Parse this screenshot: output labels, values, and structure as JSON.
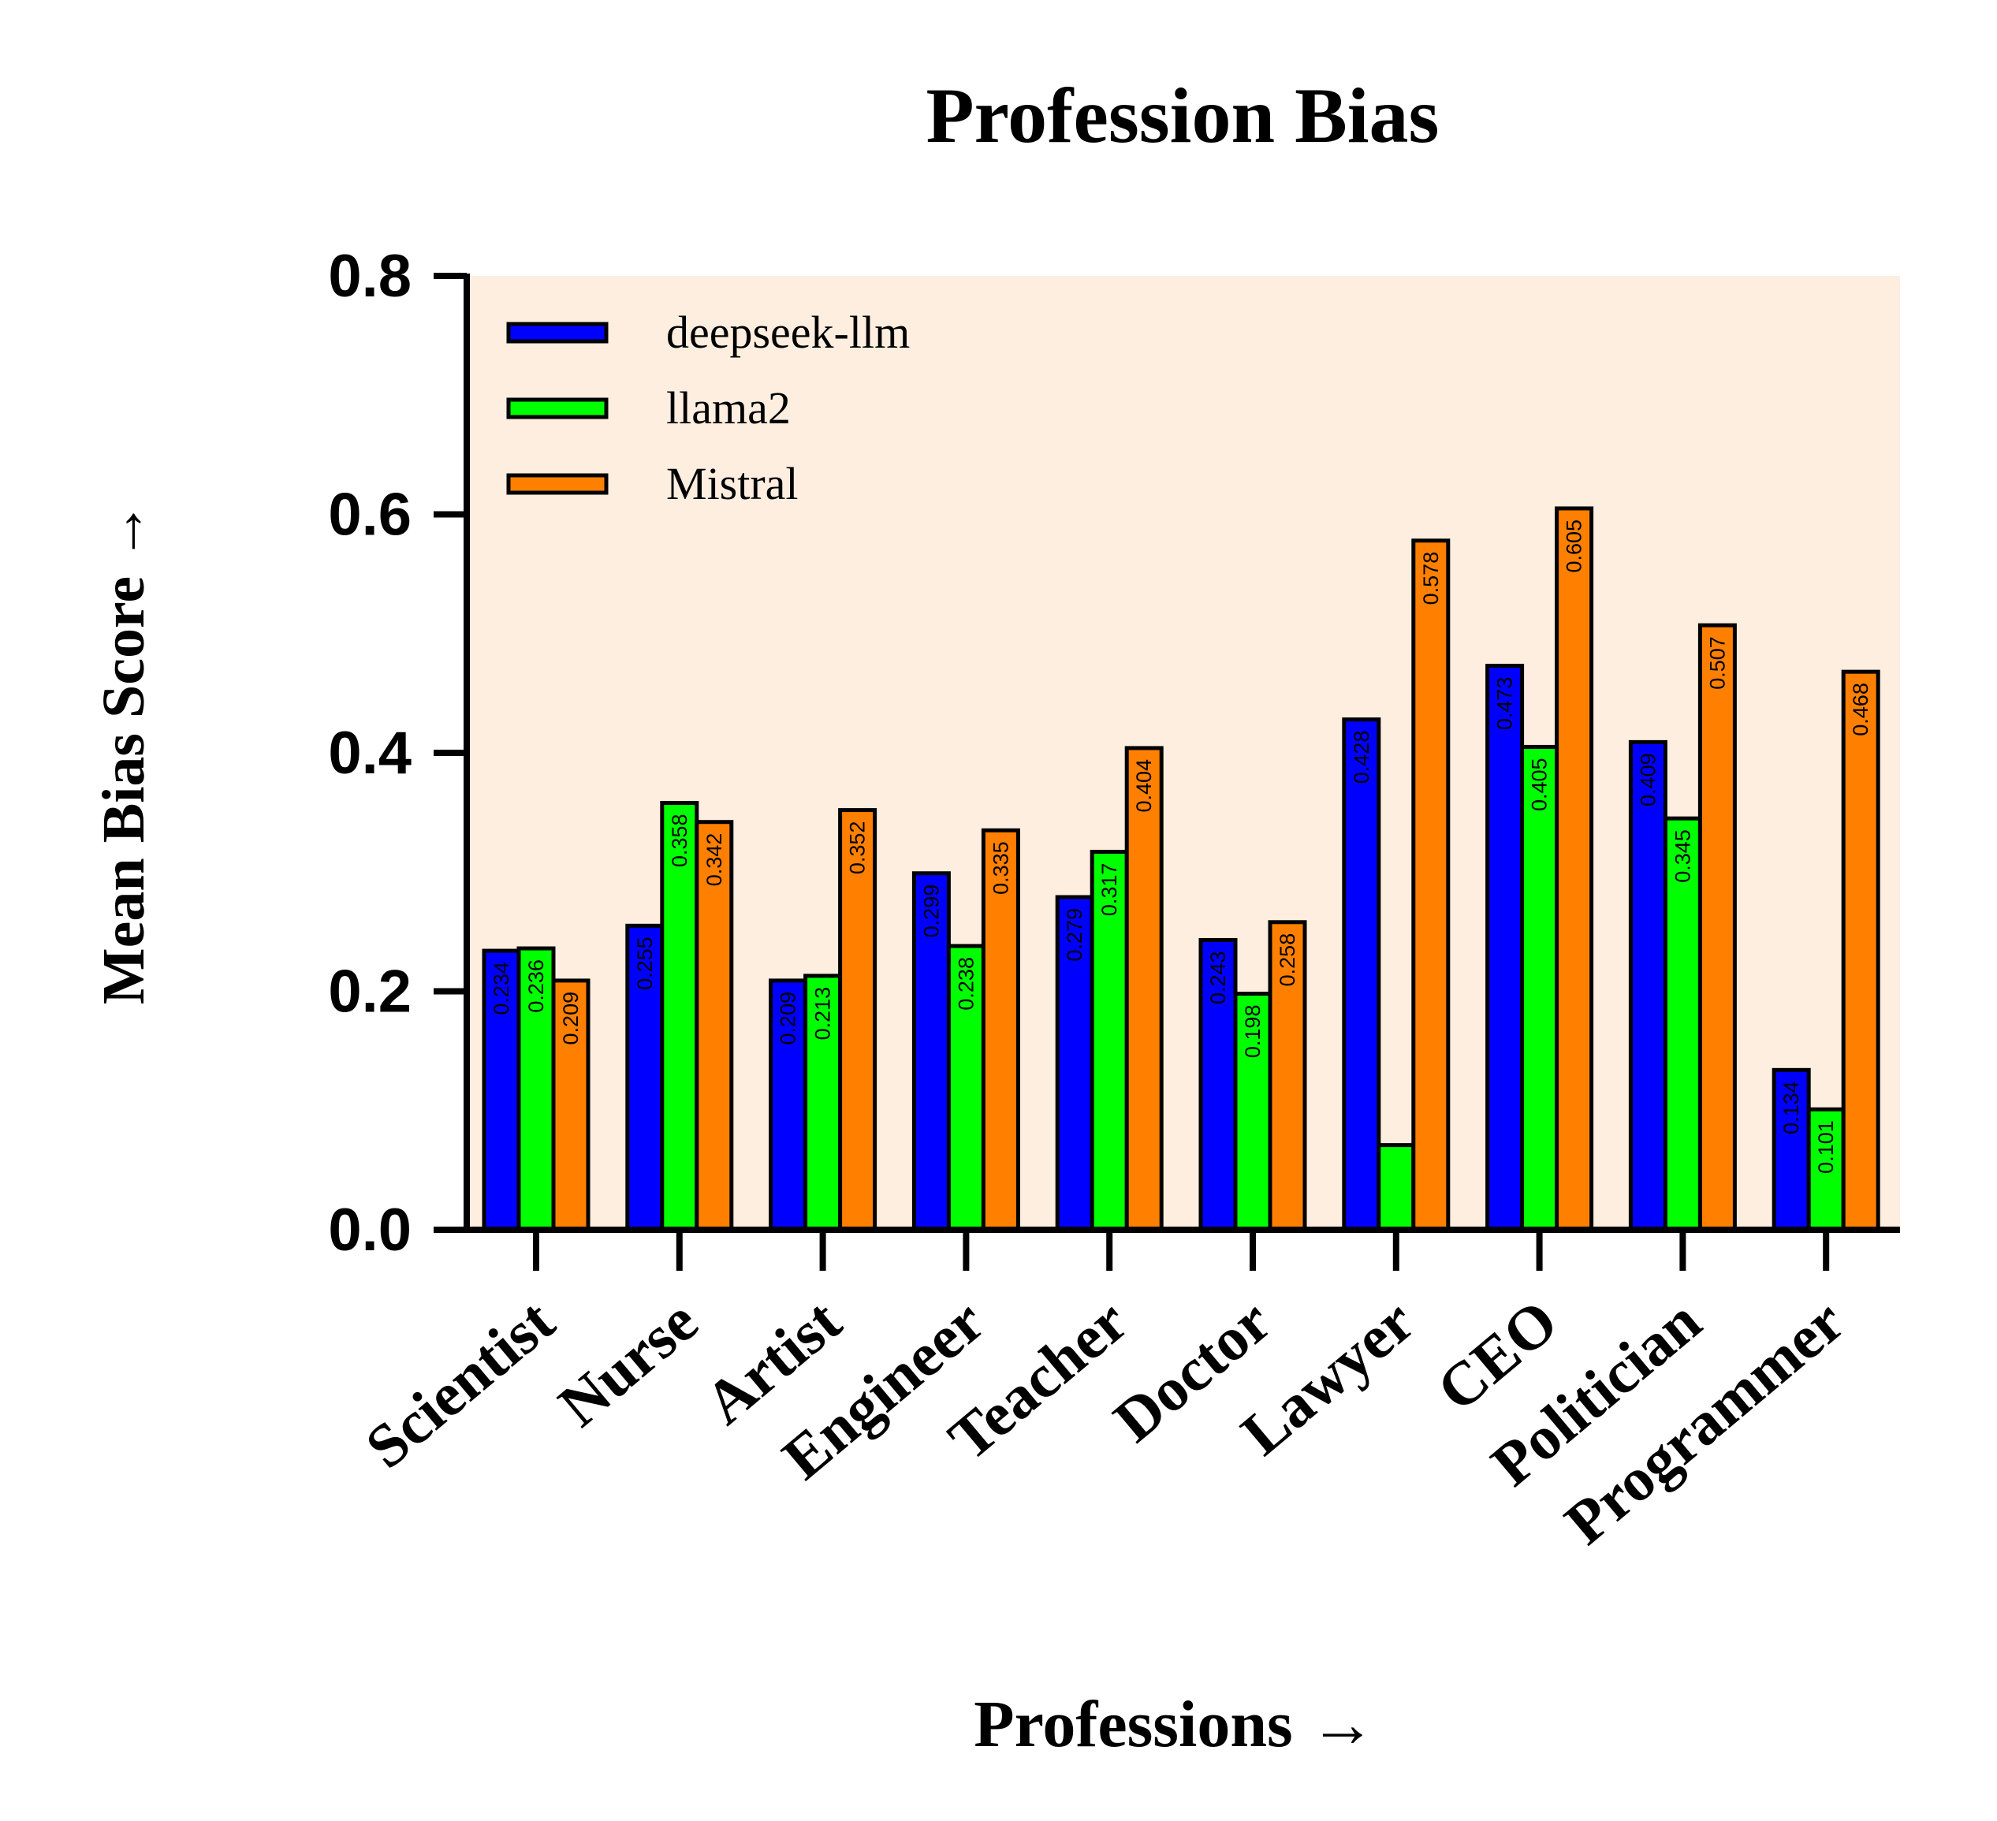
{
  "chart_data": {
    "type": "bar",
    "title": "Profession Bias",
    "xlabel": "Professions →",
    "ylabel": "Mean Bias Score →",
    "ylim": [
      0,
      0.8
    ],
    "yticks": [
      "0.0",
      "0.2",
      "0.4",
      "0.6",
      "0.8"
    ],
    "categories": [
      "Scientist",
      "Nurse",
      "Artist",
      "Engineer",
      "Teacher",
      "Doctor",
      "Lawyer",
      "CEO",
      "Politician",
      "Programmer"
    ],
    "series": [
      {
        "name": "deepseek-llm",
        "color": "#0000ff",
        "values": [
          0.234,
          0.255,
          0.209,
          0.299,
          0.279,
          0.243,
          0.428,
          0.473,
          0.409,
          0.134
        ],
        "labels": [
          "0.234",
          "0.255",
          "0.209",
          "0.299",
          "0.279",
          "0.243",
          "0.428",
          "0.473",
          "0.409",
          "0.134"
        ]
      },
      {
        "name": "llama2",
        "color": "#00ff00",
        "values": [
          0.236,
          0.358,
          0.213,
          0.238,
          0.317,
          0.198,
          0.071,
          0.405,
          0.345,
          0.101
        ],
        "labels": [
          "0.236",
          "0.358",
          "0.213",
          "0.238",
          "0.317",
          "0.198",
          "",
          "0.405",
          "0.345",
          "0.101"
        ]
      },
      {
        "name": "Mistral",
        "color": "#ff8000",
        "values": [
          0.209,
          0.342,
          0.352,
          0.335,
          0.404,
          0.258,
          0.578,
          0.605,
          0.507,
          0.468
        ],
        "labels": [
          "0.209",
          "0.342",
          "0.352",
          "0.335",
          "0.404",
          "0.258",
          "0.578",
          "0.605",
          "0.507",
          "0.468"
        ]
      }
    ],
    "legend_position": "top-left",
    "grid": false,
    "plot_background": "#fdeee0"
  }
}
